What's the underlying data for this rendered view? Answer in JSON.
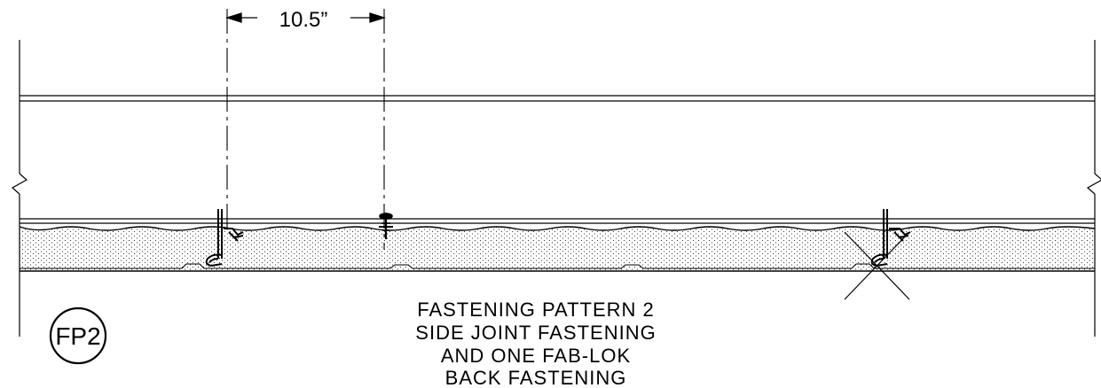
{
  "drawing": {
    "dimension_label": "10.5”",
    "detail_tag": "FP2",
    "caption_lines": [
      "FASTENING PATTERN 2",
      "SIDE JOINT FASTENING",
      "AND ONE FAB-LOK",
      "BACK FASTENING"
    ],
    "colors": {
      "line": "#000000",
      "background": "#ffffff",
      "stipple": "#000000"
    },
    "icons": [
      "break-line-icon",
      "screw-fastener-icon",
      "fab-lok-fastener-icon",
      "seam-clip-icon",
      "detail-tag-icon"
    ]
  }
}
